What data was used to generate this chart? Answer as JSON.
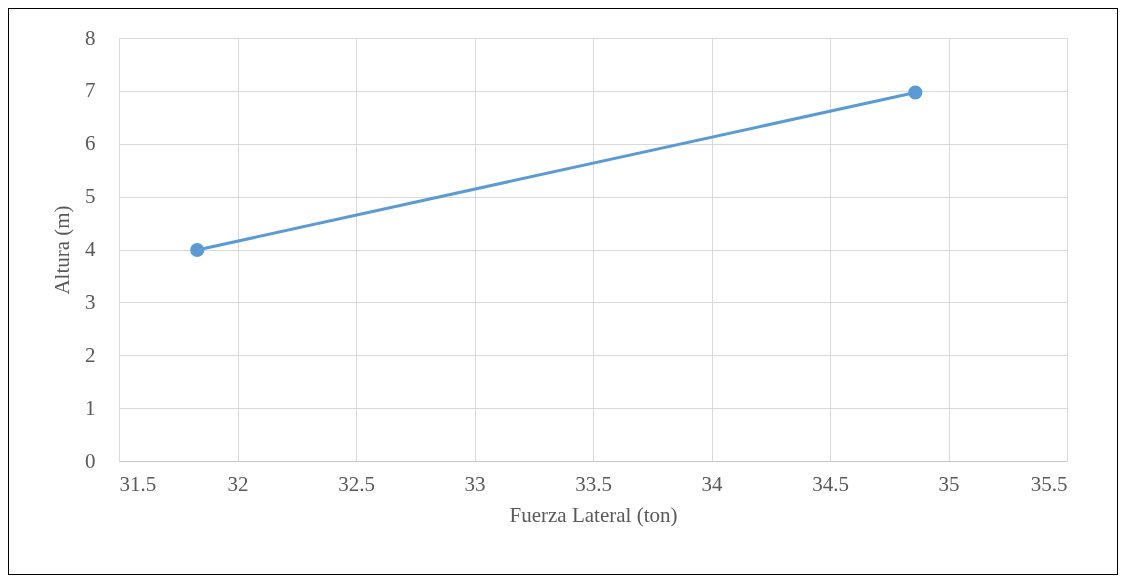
{
  "chart_data": {
    "type": "line",
    "xlabel": "Fuerza Lateral (ton)",
    "ylabel": "Altura (m)",
    "series": [
      {
        "color": "#5b9bd5",
        "x": [
          31.83,
          34.86
        ],
        "values": [
          3.99,
          6.97
        ]
      }
    ],
    "xlim": [
      31.5,
      35.5
    ],
    "xticks": [
      31.5,
      32,
      32.5,
      33,
      33.5,
      34,
      34.5,
      35,
      35.5
    ],
    "ylim": [
      0,
      8
    ],
    "yticks": [
      0,
      1,
      2,
      3,
      4,
      5,
      6,
      7,
      8
    ],
    "grid": true,
    "marker": "circle",
    "line_style": "solid"
  }
}
